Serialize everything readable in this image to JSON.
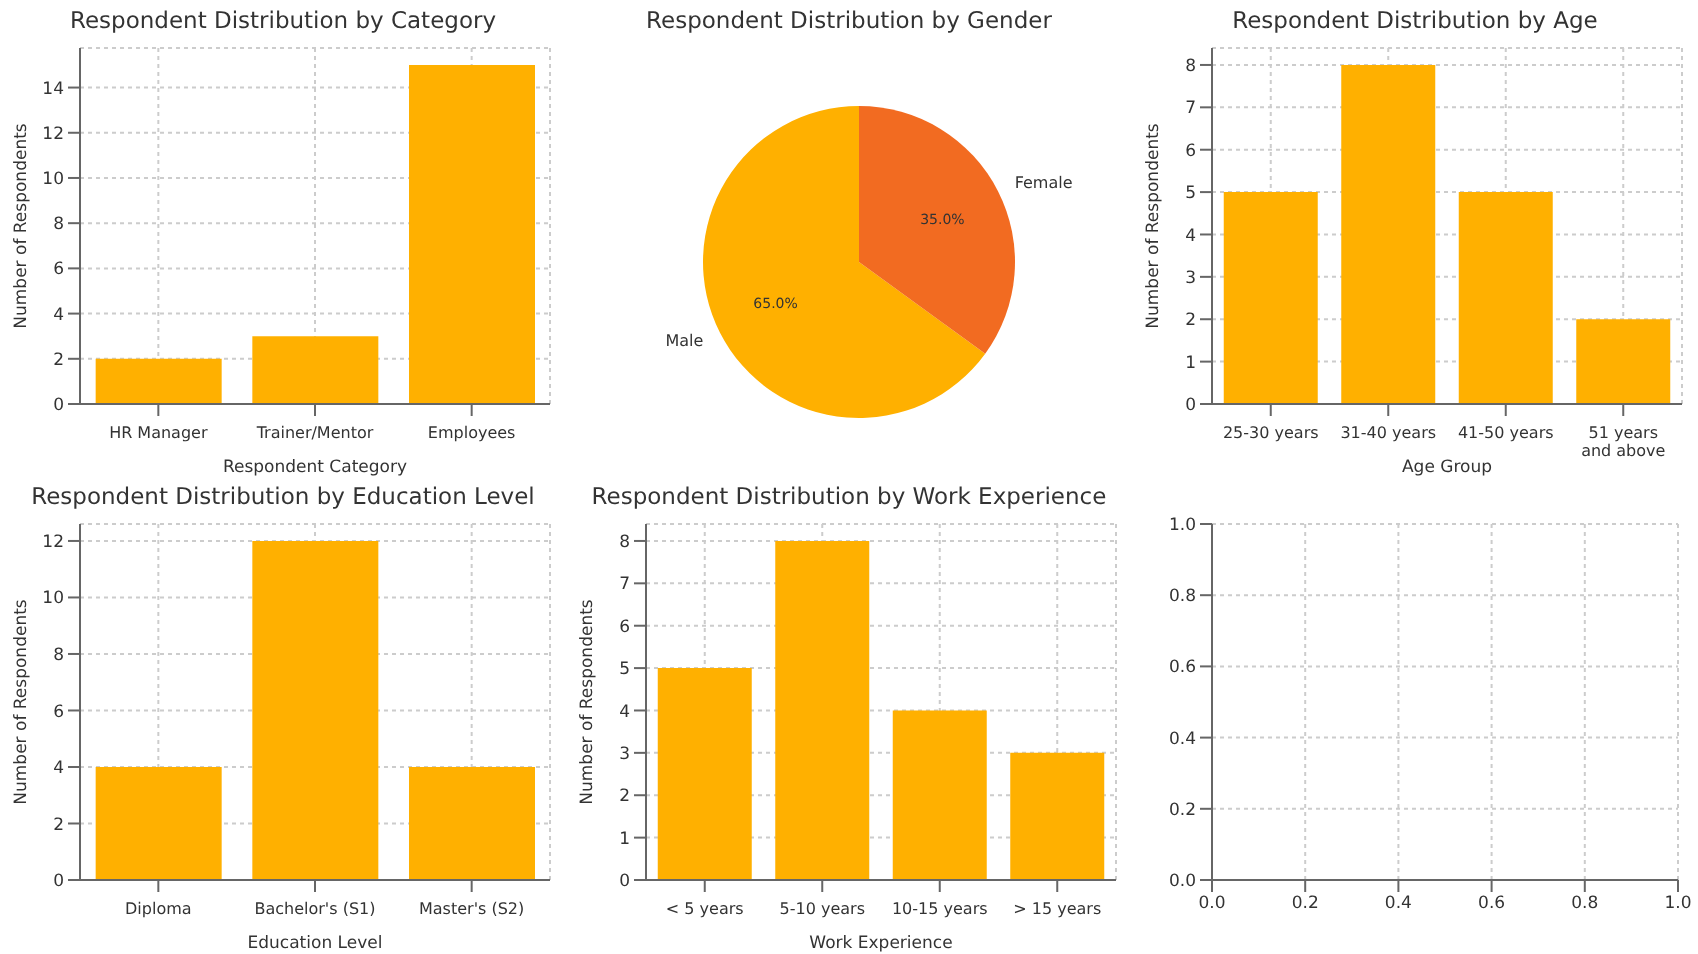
{
  "chart_data": [
    {
      "type": "bar",
      "title": "Respondent Distribution by Category",
      "xlabel": "Respondent Category",
      "ylabel": "Number of Respondents",
      "categories": [
        "HR Manager",
        "Trainer/Mentor",
        "Employees"
      ],
      "values": [
        2,
        3,
        15
      ],
      "color": "#ffb000",
      "ylim": [
        0,
        15.75
      ],
      "yticks": [
        0,
        2,
        4,
        6,
        8,
        10,
        12,
        14
      ],
      "grid": true
    },
    {
      "type": "pie",
      "title": "Respondent Distribution by Gender",
      "categories": [
        "Male",
        "Female"
      ],
      "values": [
        65,
        35
      ],
      "colors": [
        "#ffb000",
        "#f26b21"
      ],
      "value_labels": [
        "65.0%",
        "35.0%"
      ]
    },
    {
      "type": "bar",
      "title": "Respondent Distribution by Age",
      "xlabel": "Age Group",
      "ylabel": "Number of Respondents",
      "categories": [
        "25-30 years",
        "31-40 years",
        "41-50 years",
        "51 years and above"
      ],
      "values": [
        5,
        8,
        5,
        2
      ],
      "color": "#ffb000",
      "ylim": [
        0,
        8.4
      ],
      "yticks": [
        0,
        1,
        2,
        3,
        4,
        5,
        6,
        7,
        8
      ],
      "grid": true
    },
    {
      "type": "bar",
      "title": "Respondent Distribution by Education Level",
      "xlabel": "Education Level",
      "ylabel": "Number of Respondents",
      "categories": [
        "Diploma",
        "Bachelor's (S1)",
        "Master's (S2)"
      ],
      "values": [
        4,
        12,
        4
      ],
      "color": "#ffb000",
      "ylim": [
        0,
        12.6
      ],
      "yticks": [
        0,
        2,
        4,
        6,
        8,
        10,
        12
      ],
      "grid": true
    },
    {
      "type": "bar",
      "title": "Respondent Distribution by Work Experience",
      "xlabel": "Work Experience",
      "ylabel": "Number of Respondents",
      "categories": [
        "< 5 years",
        "5-10 years",
        "10-15 years",
        "> 15 years"
      ],
      "values": [
        5,
        8,
        4,
        3
      ],
      "color": "#ffb000",
      "ylim": [
        0,
        8.4
      ],
      "yticks": [
        0,
        1,
        2,
        3,
        4,
        5,
        6,
        7,
        8
      ],
      "grid": true
    },
    {
      "type": "scatter",
      "xlim": [
        0,
        1
      ],
      "ylim": [
        0,
        1
      ],
      "xticks": [
        {
          "value": 0,
          "label": "0.0"
        },
        0.2,
        0.4,
        0.6,
        0.8,
        {
          "value": 1,
          "label": "1.0"
        }
      ],
      "yticks": [
        {
          "value": 0,
          "label": "0.0"
        },
        0.2,
        0.4,
        0.6,
        0.8,
        {
          "value": 1,
          "label": "1.0"
        }
      ],
      "grid": true
    }
  ]
}
